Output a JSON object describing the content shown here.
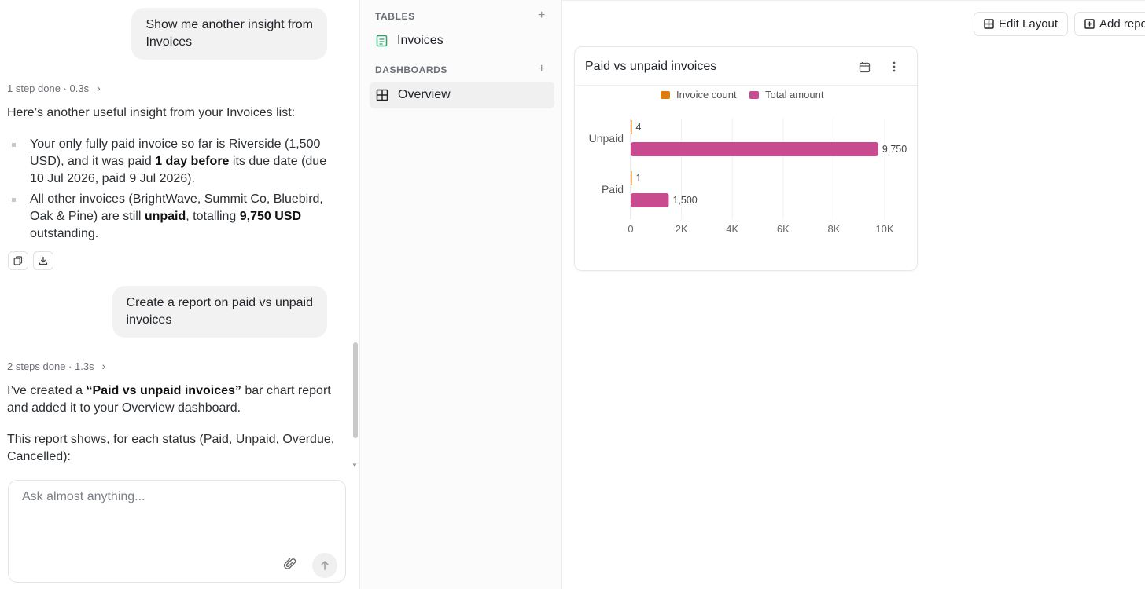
{
  "chat": {
    "messages": [
      {
        "role": "user",
        "text_lines": [
          "Show me another insight from",
          "Invoices"
        ]
      },
      {
        "role": "assistant",
        "steps": "1 step done · 0.3s",
        "intro": "Here’s another useful insight from your Invoices list:",
        "bullets": [
          {
            "parts": [
              "Your only fully paid invoice so far is Riverside (1,500 USD), and it was paid ",
              "1 day before",
              " its due date (due 10 Jul 2026, paid 9 Jul 2026)."
            ]
          },
          {
            "parts": [
              "All other invoices (BrightWave, Summit Co, Bluebird, Oak & Pine) are still ",
              "unpaid",
              ", totalling ",
              "9,750 USD",
              " outstanding."
            ]
          }
        ]
      },
      {
        "role": "user",
        "text_lines": [
          "Create a report on paid vs unpaid",
          "invoices"
        ]
      },
      {
        "role": "assistant",
        "steps": "2 steps done · 1.3s",
        "parts": [
          "I’ve created a ",
          "“Paid vs unpaid invoices”",
          " bar chart report and added it to your Overview dashboard."
        ],
        "para2": "This report shows, for each status (Paid, Unpaid, Overdue, Cancelled):"
      }
    ],
    "composer_placeholder": "Ask almost anything..."
  },
  "sidebar": {
    "tables_title": "TABLES",
    "tables": [
      {
        "label": "Invoices"
      }
    ],
    "dashboards_title": "DASHBOARDS",
    "dashboards": [
      {
        "label": "Overview",
        "active": true
      }
    ]
  },
  "toolbar": {
    "edit_layout_label": "Edit Layout",
    "add_report_label": "Add report"
  },
  "report": {
    "title": "Paid vs unpaid invoices"
  },
  "chart_data": {
    "type": "bar",
    "orientation": "horizontal",
    "categories": [
      "Unpaid",
      "Paid"
    ],
    "series": [
      {
        "name": "Invoice count",
        "values": [
          4,
          1
        ],
        "color": "#e07b12"
      },
      {
        "name": "Total amount",
        "values": [
          9750,
          1500
        ],
        "color": "#c84b8f"
      }
    ],
    "xlim": [
      0,
      10000
    ],
    "xticks": [
      0,
      2000,
      4000,
      6000,
      8000,
      10000
    ],
    "xtick_labels": [
      "0",
      "2K",
      "4K",
      "6K",
      "8K",
      "10K"
    ],
    "value_labels": [
      [
        "4",
        "1"
      ],
      [
        "9,750",
        "1,500"
      ]
    ],
    "legend": "top",
    "grid": true
  }
}
